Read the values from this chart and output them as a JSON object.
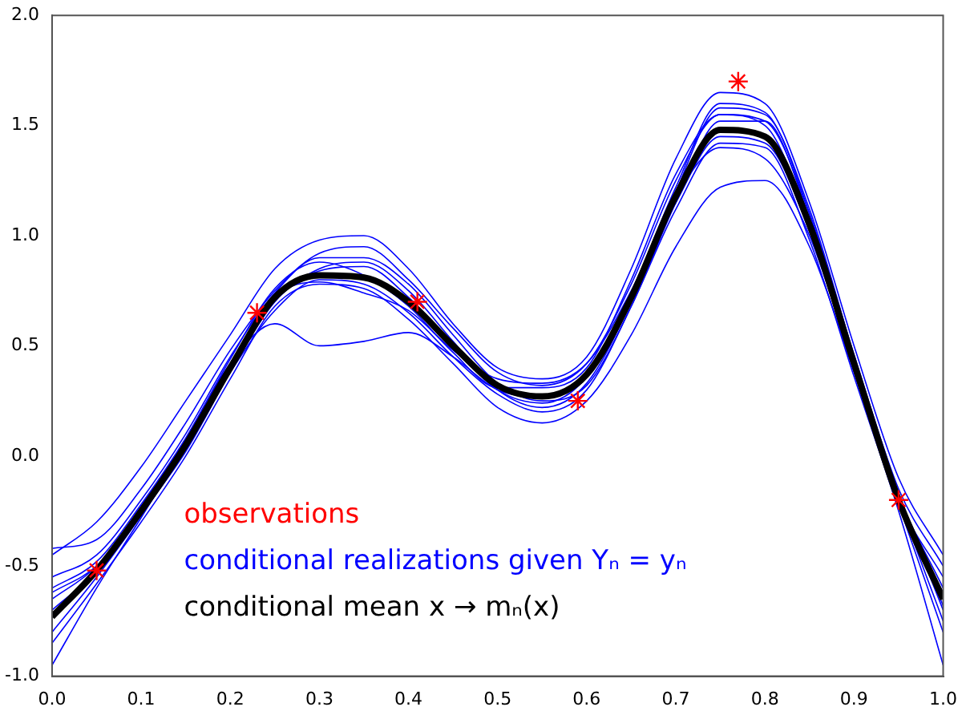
{
  "chart_data": {
    "type": "line",
    "x": [
      0,
      0.05,
      0.1,
      0.15,
      0.2,
      0.25,
      0.3,
      0.35,
      0.4,
      0.45,
      0.5,
      0.55,
      0.6,
      0.65,
      0.7,
      0.75,
      0.8,
      0.85,
      0.9,
      0.95,
      1.0
    ],
    "series": [
      {
        "name": "observations",
        "type": "scatter",
        "marker": "cross",
        "color": "#ff0000",
        "x": [
          0.05,
          0.23,
          0.41,
          0.59,
          0.77,
          0.95
        ],
        "values": [
          -0.52,
          0.65,
          0.7,
          0.25,
          1.7,
          -0.2
        ]
      },
      {
        "name": "conditional realizations given Yₙ = yₙ",
        "color": "#0000ff",
        "values": [
          -0.45,
          -0.3,
          -0.05,
          0.25,
          0.55,
          0.85,
          0.98,
          1.0,
          0.85,
          0.6,
          0.4,
          0.35,
          0.45,
          0.85,
          1.35,
          1.65,
          1.6,
          1.15,
          0.5,
          -0.1,
          -0.45
        ]
      },
      {
        "color": "#0000ff",
        "values": [
          -0.6,
          -0.48,
          -0.22,
          0.08,
          0.42,
          0.6,
          0.5,
          0.52,
          0.56,
          0.45,
          0.3,
          0.27,
          0.38,
          0.72,
          1.15,
          1.45,
          1.42,
          1.02,
          0.4,
          -0.18,
          -0.7
        ]
      },
      {
        "color": "#0000ff",
        "values": [
          -0.85,
          -0.58,
          -0.3,
          0.0,
          0.35,
          0.68,
          0.78,
          0.76,
          0.62,
          0.42,
          0.22,
          0.15,
          0.25,
          0.55,
          0.95,
          1.22,
          1.25,
          0.95,
          0.38,
          -0.22,
          -0.8
        ]
      },
      {
        "color": "#0000ff",
        "values": [
          -0.95,
          -0.6,
          -0.28,
          0.05,
          0.38,
          0.66,
          0.8,
          0.78,
          0.65,
          0.45,
          0.28,
          0.2,
          0.3,
          0.68,
          1.12,
          1.42,
          1.4,
          0.98,
          0.36,
          -0.25,
          -0.95
        ]
      },
      {
        "color": "#0000ff",
        "values": [
          -0.42,
          -0.38,
          -0.15,
          0.15,
          0.48,
          0.75,
          0.92,
          0.95,
          0.8,
          0.58,
          0.38,
          0.32,
          0.42,
          0.78,
          1.25,
          1.55,
          1.52,
          1.1,
          0.46,
          -0.15,
          -0.5
        ]
      },
      {
        "color": "#0000ff",
        "values": [
          -0.62,
          -0.5,
          -0.26,
          0.02,
          0.38,
          0.7,
          0.85,
          0.88,
          0.75,
          0.52,
          0.3,
          0.22,
          0.33,
          0.7,
          1.2,
          1.58,
          1.55,
          1.12,
          0.45,
          -0.22,
          -0.62
        ]
      },
      {
        "color": "#0000ff",
        "values": [
          -0.8,
          -0.55,
          -0.27,
          0.03,
          0.4,
          0.72,
          0.79,
          0.74,
          0.66,
          0.48,
          0.35,
          0.33,
          0.42,
          0.75,
          1.18,
          1.4,
          1.35,
          1.0,
          0.4,
          -0.2,
          -0.55
        ]
      },
      {
        "color": "#0000ff",
        "values": [
          -0.55,
          -0.45,
          -0.2,
          0.1,
          0.45,
          0.74,
          0.9,
          0.9,
          0.78,
          0.55,
          0.33,
          0.25,
          0.32,
          0.68,
          1.15,
          1.52,
          1.52,
          1.08,
          0.44,
          -0.18,
          -0.6
        ]
      },
      {
        "color": "#0000ff",
        "values": [
          -0.7,
          -0.52,
          -0.24,
          0.06,
          0.42,
          0.72,
          0.84,
          0.86,
          0.72,
          0.5,
          0.3,
          0.24,
          0.36,
          0.74,
          1.22,
          1.6,
          1.56,
          1.1,
          0.42,
          -0.2,
          -0.75
        ]
      },
      {
        "color": "#0000ff",
        "values": [
          -0.65,
          -0.5,
          -0.23,
          0.08,
          0.44,
          0.76,
          0.88,
          0.82,
          0.68,
          0.47,
          0.31,
          0.31,
          0.4,
          0.8,
          1.28,
          1.55,
          1.5,
          1.05,
          0.4,
          -0.19,
          -0.68
        ]
      },
      {
        "name": "conditional mean x → mₙ(x)",
        "color": "#000000",
        "values": [
          -0.73,
          -0.52,
          -0.25,
          0.05,
          0.4,
          0.72,
          0.82,
          0.81,
          0.7,
          0.5,
          0.32,
          0.27,
          0.37,
          0.72,
          1.18,
          1.48,
          1.45,
          1.05,
          0.42,
          -0.2,
          -0.65
        ]
      }
    ],
    "xlim": [
      0,
      1.0
    ],
    "xticks": [
      {
        "value": 0,
        "label": "0.0"
      },
      0.1,
      0.2,
      0.3,
      0.4,
      0.5,
      0.6,
      0.7,
      0.8,
      0.9,
      {
        "value": 1,
        "label": "1.0"
      }
    ],
    "ylim": [
      -1.0,
      2.0
    ],
    "yticks": [
      {
        "value": -1,
        "label": "-1.0"
      },
      -0.5,
      {
        "value": 0,
        "label": "0.0"
      },
      0.5,
      {
        "value": 1,
        "label": "1.0"
      },
      1.5,
      {
        "value": 2,
        "label": "2.0"
      }
    ],
    "grid": false,
    "marker": "none",
    "line_style": "solid",
    "legend": "bottom left"
  }
}
